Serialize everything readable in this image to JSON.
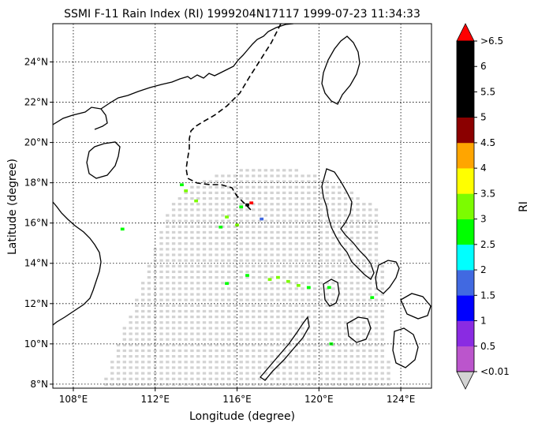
{
  "chart_data": {
    "type": "heatmap",
    "title": "SSMI F-11 Rain Index (RI) 1999204N17117 1999-07-23 11:34:33",
    "xlabel": "Longitude (degree)",
    "ylabel": "Latitude (degree)",
    "xlim": [
      107,
      125.5
    ],
    "ylim": [
      7.8,
      25.9
    ],
    "grid": true,
    "x_ticks": [
      "108°E",
      "112°E",
      "116°E",
      "120°E",
      "124°E"
    ],
    "x_tick_values": [
      108,
      112,
      116,
      120,
      124
    ],
    "y_ticks": [
      "8°N",
      "10°N",
      "12°N",
      "14°N",
      "16°N",
      "18°N",
      "20°N",
      "22°N",
      "24°N"
    ],
    "y_tick_values": [
      8,
      10,
      12,
      14,
      16,
      18,
      20,
      22,
      24
    ],
    "colorbar": {
      "label": "RI",
      "tick_labels": [
        "<0.01",
        "0.5",
        "1",
        "1.5",
        "2",
        "2.5",
        "3",
        "3.5",
        "4",
        "4.5",
        "5",
        "5.5",
        "6",
        ">6.5"
      ],
      "colors": [
        "#bb55cc",
        "#8a2be2",
        "#0000ff",
        "#4169e1",
        "#00ffff",
        "#00ff00",
        "#7cfc00",
        "#ffff00",
        "#ffa500",
        "#8b0000",
        "#000000",
        "#000000",
        "#000000"
      ],
      "over_color": "#ff0000",
      "under_color": "#d3d3d3"
    },
    "swath_color": "#d3d3d3",
    "rain_cells": [
      {
        "lon": 113.5,
        "lat": 17.6,
        "ri": 3.0
      },
      {
        "lon": 114.0,
        "lat": 17.1,
        "ri": 3.0
      },
      {
        "lon": 113.3,
        "lat": 17.9,
        "ri": 2.5
      },
      {
        "lon": 115.5,
        "lat": 16.3,
        "ri": 3.0
      },
      {
        "lon": 116.0,
        "lat": 15.9,
        "ri": 3.0
      },
      {
        "lon": 115.2,
        "lat": 15.8,
        "ri": 2.5
      },
      {
        "lon": 116.2,
        "lat": 16.8,
        "ri": 2.5
      },
      {
        "lon": 116.5,
        "lat": 16.9,
        "ri": 5.0
      },
      {
        "lon": 116.7,
        "lat": 17.0,
        "ri": 7.0
      },
      {
        "lon": 117.2,
        "lat": 16.2,
        "ri": 1.5
      },
      {
        "lon": 118.0,
        "lat": 13.3,
        "ri": 3.0
      },
      {
        "lon": 118.5,
        "lat": 13.1,
        "ri": 3.0
      },
      {
        "lon": 117.6,
        "lat": 13.2,
        "ri": 3.0
      },
      {
        "lon": 119.0,
        "lat": 12.9,
        "ri": 3.0
      },
      {
        "lon": 119.5,
        "lat": 12.8,
        "ri": 2.5
      },
      {
        "lon": 116.5,
        "lat": 13.4,
        "ri": 2.5
      },
      {
        "lon": 115.5,
        "lat": 13.0,
        "ri": 2.5
      },
      {
        "lon": 120.5,
        "lat": 12.8,
        "ri": 2.5
      },
      {
        "lon": 122.6,
        "lat": 12.3,
        "ri": 2.5
      },
      {
        "lon": 120.6,
        "lat": 10.0,
        "ri": 2.5
      },
      {
        "lon": 110.4,
        "lat": 15.7,
        "ri": 2.5
      }
    ]
  }
}
